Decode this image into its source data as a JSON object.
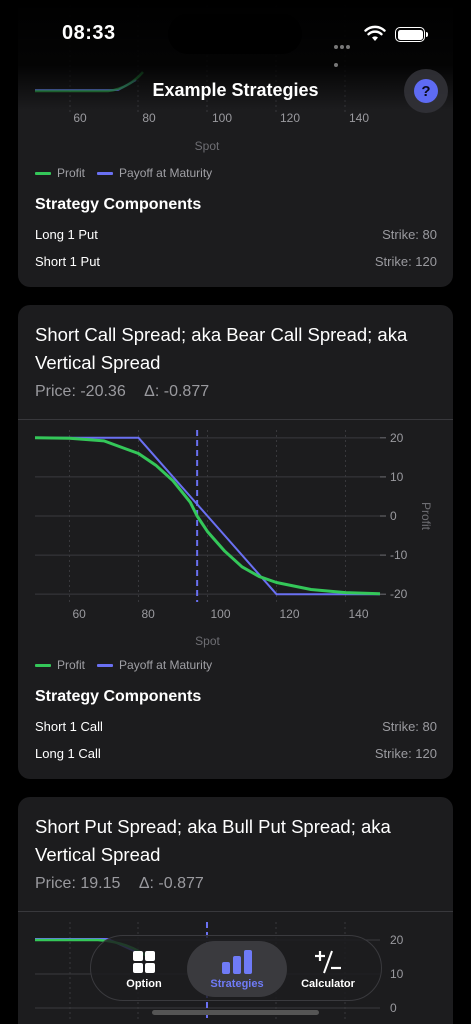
{
  "status_bar": {
    "time": "08:33"
  },
  "nav": {
    "title": "Example Strategies",
    "help_label": "?"
  },
  "legend": {
    "profit": "Profit",
    "payoff": "Payoff at Maturity"
  },
  "colors": {
    "profit": "#34c759",
    "payoff": "#6a70f2",
    "strike_line": "#6a70f2",
    "accent": "#6f7bf7"
  },
  "cards": [
    {
      "title": "",
      "x_ticks": [
        "60",
        "80",
        "100",
        "120",
        "140"
      ],
      "x_label": "Spot",
      "components_title": "Strategy Components",
      "components": [
        {
          "name": "Long 1 Put",
          "strike": "Strike: 80"
        },
        {
          "name": "Short 1 Put",
          "strike": "Strike: 120"
        }
      ]
    },
    {
      "title": "Short Call Spread; aka Bear Call Spread; aka Vertical Spread",
      "price": "Price: -20.36",
      "delta": "Δ: -0.877",
      "x_ticks": [
        "60",
        "80",
        "100",
        "120",
        "140"
      ],
      "y_ticks": [
        "20",
        "10",
        "0",
        "-10",
        "-20"
      ],
      "x_label": "Spot",
      "y_label": "Profit",
      "components_title": "Strategy Components",
      "components": [
        {
          "name": "Short 1 Call",
          "strike": "Strike: 80"
        },
        {
          "name": "Long 1 Call",
          "strike": "Strike: 120"
        }
      ]
    },
    {
      "title": "Short Put Spread; aka Bull Put Spread; aka Vertical Spread",
      "price": "Price: 19.15",
      "delta": "Δ: -0.877",
      "y_ticks": [
        "20",
        "10",
        "0"
      ]
    }
  ],
  "chart_data": [
    {
      "type": "line",
      "title": "Short Call Spread; aka Bear Call Spread; aka Vertical Spread",
      "xlabel": "Spot",
      "ylabel": "Profit",
      "xlim": [
        50,
        150
      ],
      "ylim": [
        -22,
        22
      ],
      "x_ticks": [
        60,
        80,
        100,
        120,
        140
      ],
      "y_ticks": [
        20,
        10,
        0,
        -10,
        -20
      ],
      "strike_marker_x": 97,
      "series": [
        {
          "name": "Profit",
          "x": [
            50,
            60,
            70,
            80,
            85,
            90,
            95,
            97,
            100,
            105,
            110,
            115,
            120,
            130,
            140,
            150
          ],
          "y": [
            20,
            19.9,
            19.2,
            16,
            13,
            9,
            3.5,
            0,
            -4,
            -9,
            -13,
            -15.5,
            -17,
            -18.8,
            -19.6,
            -19.9
          ]
        },
        {
          "name": "Payoff at Maturity",
          "x": [
            50,
            80,
            120,
            150
          ],
          "y": [
            20,
            20,
            -20,
            -20
          ]
        }
      ]
    }
  ]
}
